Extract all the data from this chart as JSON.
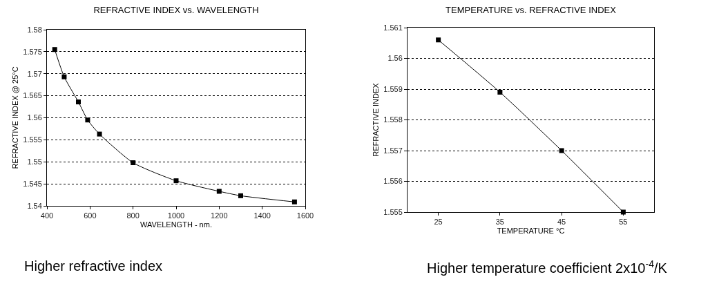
{
  "chart_data": [
    {
      "type": "line",
      "title": "REFRACTIVE INDEX vs. WAVELENGTH",
      "xlabel": "WAVELENGTH - nm.",
      "ylabel": "REFRACTIVE INDEX @ 25°C",
      "x": [
        436,
        480,
        546,
        589,
        644,
        800,
        1000,
        1200,
        1300,
        1550
      ],
      "series": [
        {
          "color": "#000000",
          "values": [
            1.5755,
            1.5693,
            1.5636,
            1.5595,
            1.5563,
            1.5498,
            1.5457,
            1.5433,
            1.5423,
            1.5409
          ]
        }
      ],
      "xlim": [
        400,
        1600
      ],
      "xticks": [
        400,
        600,
        800,
        1000,
        1200,
        1400,
        1600
      ],
      "ylim": [
        1.54,
        1.58
      ],
      "yticks": [
        1.54,
        1.545,
        1.55,
        1.555,
        1.56,
        1.565,
        1.57,
        1.575,
        1.58
      ],
      "grid": "y",
      "marker": "square",
      "line_style": "solid",
      "annotations": [
        "Higher refractive index"
      ]
    },
    {
      "type": "line",
      "title": "TEMPERATURE vs. REFRACTIVE INDEX",
      "xlabel": "TEMPERATURE °C",
      "ylabel": "REFRACTIVE INDEX",
      "x": [
        25,
        35,
        45,
        55
      ],
      "series": [
        {
          "color": "#000000",
          "values": [
            1.5606,
            1.5589,
            1.557,
            1.555
          ]
        }
      ],
      "xlim": [
        20,
        60
      ],
      "xticks": [
        25,
        35,
        45,
        55
      ],
      "ylim": [
        1.555,
        1.561
      ],
      "yticks": [
        1.555,
        1.556,
        1.557,
        1.558,
        1.559,
        1.56,
        1.561
      ],
      "grid": "y",
      "marker": "square",
      "line_style": "solid",
      "annotations": [
        "Higher temperature coefficient 2x10$^{-4}$/K"
      ]
    }
  ]
}
